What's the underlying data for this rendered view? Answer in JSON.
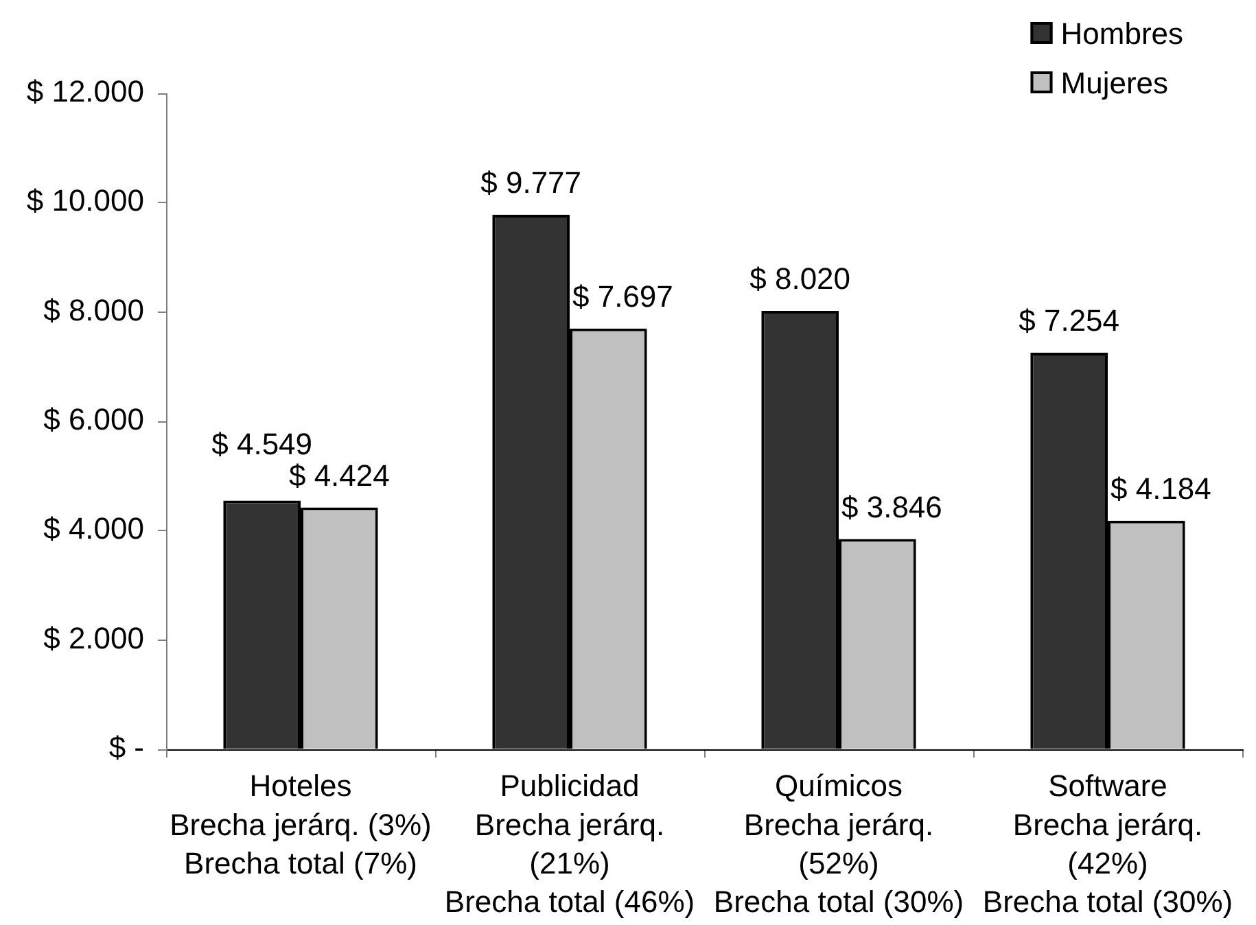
{
  "chart_data": {
    "type": "bar",
    "categories": [
      "Hoteles\nBrecha jerárq. (3%)\nBrecha total (7%)",
      "Publicidad\nBrecha jerárq. (21%)\nBrecha total (46%)",
      "Químicos\nBrecha jerárq. (52%)\nBrecha total (30%)",
      "Software\nBrecha jerárq. (42%)\nBrecha total (30%)"
    ],
    "series": [
      {
        "name": "Hombres",
        "color": "#333333",
        "values": [
          4549,
          9777,
          8020,
          7254
        ],
        "value_labels": [
          "$ 4.549",
          "$ 9.777",
          "$ 8.020",
          "$ 7.254"
        ]
      },
      {
        "name": "Mujeres",
        "color": "#c0c0c0",
        "values": [
          4424,
          7697,
          3846,
          4184
        ],
        "value_labels": [
          "$ 4.424",
          "$ 7.697",
          "$ 3.846",
          "$ 4.184"
        ]
      }
    ],
    "ylim": [
      0,
      12000
    ],
    "yticks": [
      {
        "value": 0,
        "label": "$ -"
      },
      {
        "value": 2000,
        "label": "$ 2.000"
      },
      {
        "value": 4000,
        "label": "$ 4.000"
      },
      {
        "value": 6000,
        "label": "$ 6.000"
      },
      {
        "value": 8000,
        "label": "$ 8.000"
      },
      {
        "value": 10000,
        "label": "$ 10.000"
      },
      {
        "value": 12000,
        "label": "$ 12.000"
      }
    ],
    "legend": "top right"
  }
}
